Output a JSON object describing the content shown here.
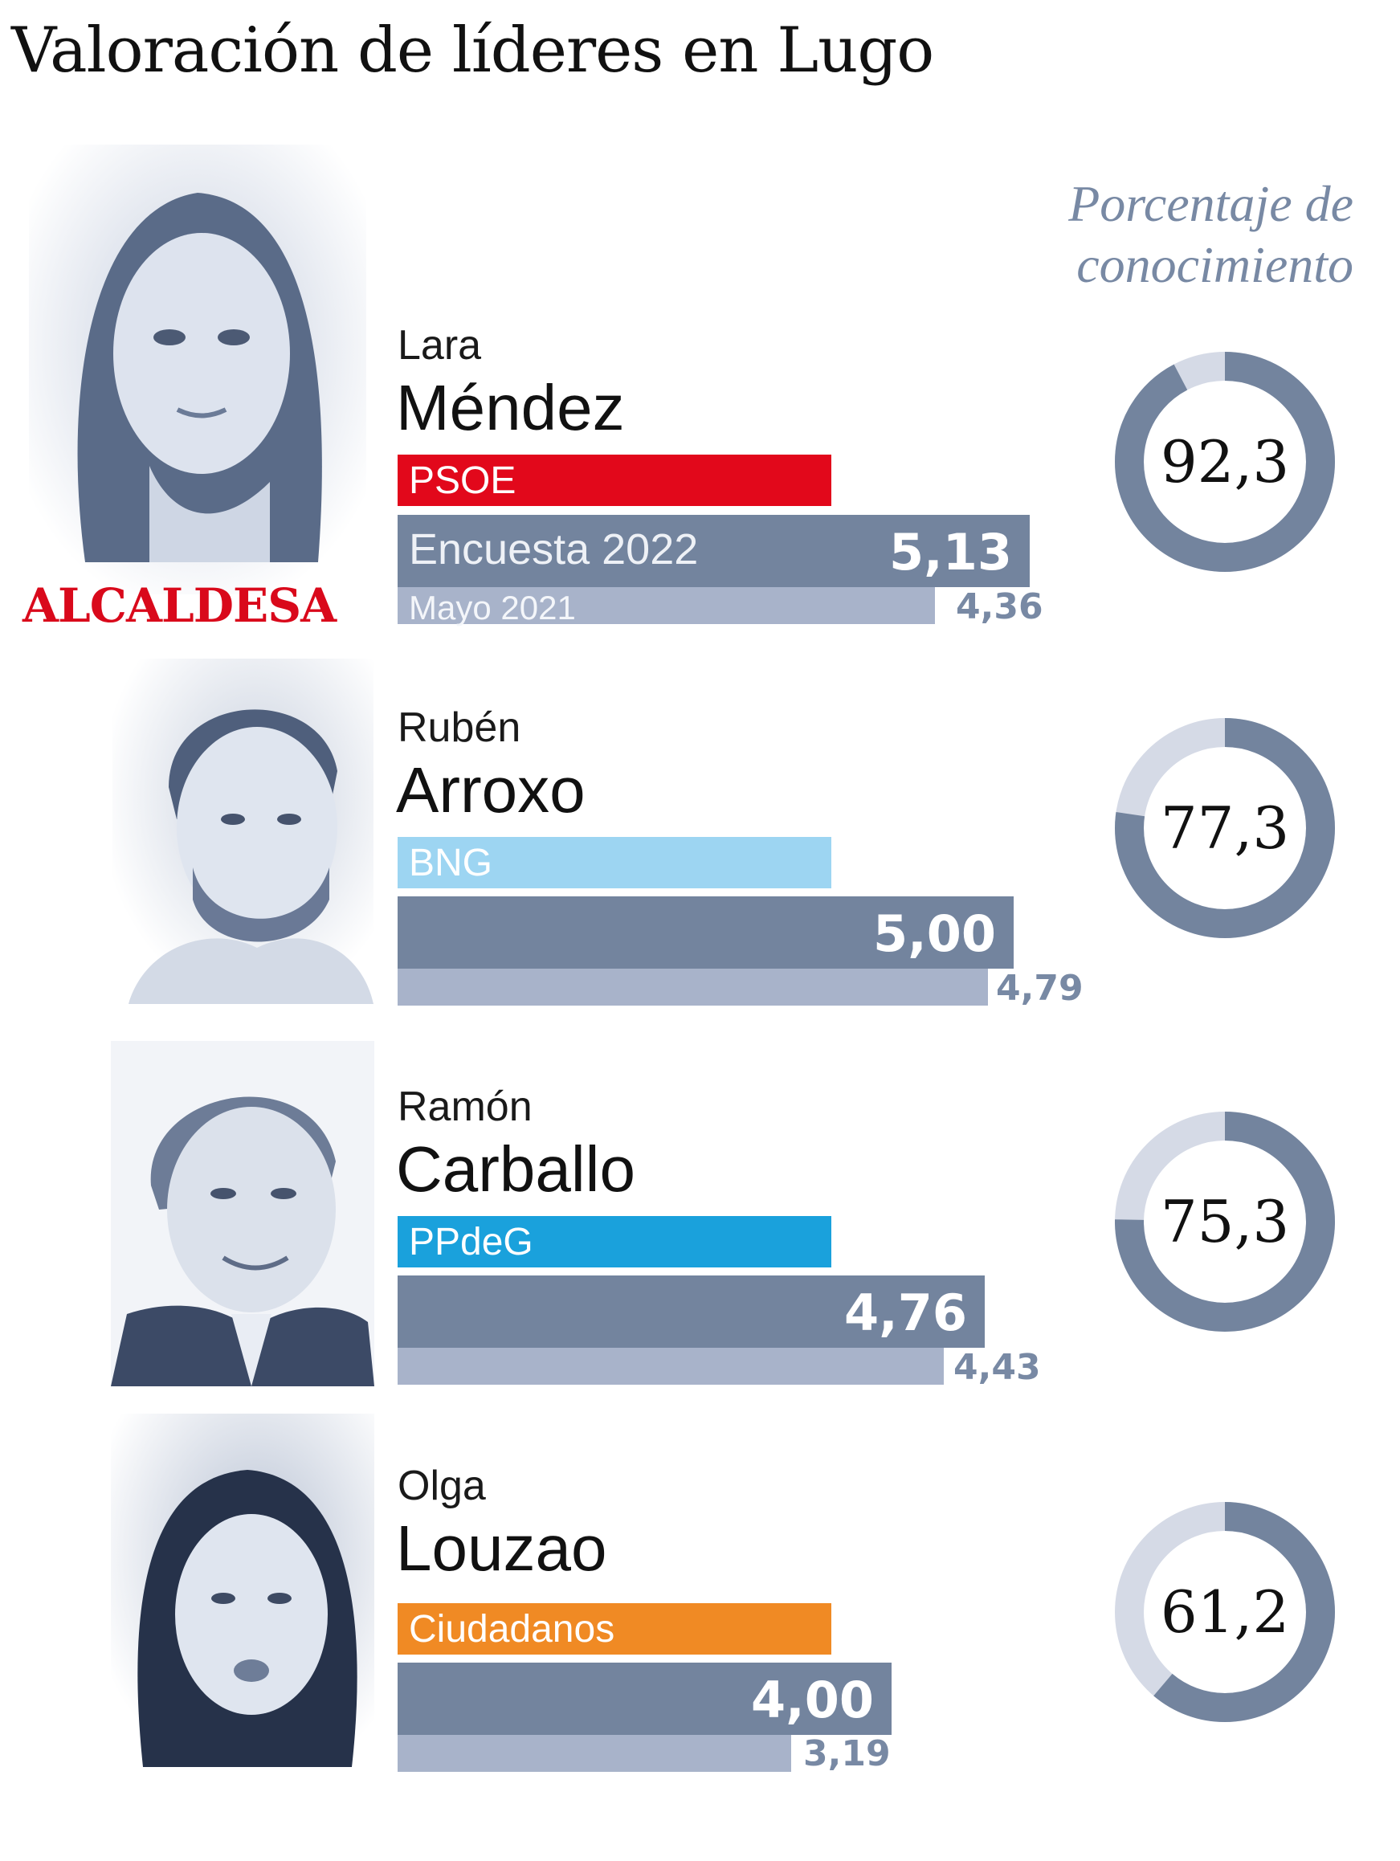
{
  "title": "Valoración de líderes en Lugo",
  "knowledge_heading": [
    "Porcentaje de",
    "conocimiento"
  ],
  "incumbent_label": "ALCALDESA",
  "colors": {
    "survey_2022": "#73849e",
    "may_2021": "#a8b3ca",
    "ring_fill": "#73849e",
    "ring_rest": "#d5dae6",
    "PSOE": "#e2081b",
    "BNG": "#9dd5f2",
    "PPdeG": "#1aa1dc",
    "Ciudadanos": "#f08a24"
  },
  "legend": {
    "survey_2022": "Encuesta 2022",
    "may_2021": "Mayo 2021"
  },
  "leaders": [
    {
      "first_name": "Lara",
      "last_name": "Méndez",
      "party": "PSOE",
      "score_2022": "5,13",
      "score_2021": "4,36",
      "knowledge": "92,3"
    },
    {
      "first_name": "Rubén",
      "last_name": "Arroxo",
      "party": "BNG",
      "score_2022": "5,00",
      "score_2021": "4,79",
      "knowledge": "77,3"
    },
    {
      "first_name": "Ramón",
      "last_name": "Carballo",
      "party": "PPdeG",
      "score_2022": "4,76",
      "score_2021": "4,43",
      "knowledge": "75,3"
    },
    {
      "first_name": "Olga",
      "last_name": "Louzao",
      "party": "Ciudadanos",
      "score_2022": "4,00",
      "score_2021": "3,19",
      "knowledge": "61,2"
    }
  ],
  "chart_data": {
    "type": "bar",
    "title": "Valoración de líderes en Lugo",
    "categories": [
      "Lara Méndez",
      "Rubén Arroxo",
      "Ramón Carballo",
      "Olga Louzao"
    ],
    "series": [
      {
        "name": "Encuesta 2022",
        "values": [
          5.13,
          5.0,
          4.76,
          4.0
        ]
      },
      {
        "name": "Mayo 2021",
        "values": [
          4.36,
          4.79,
          4.43,
          3.19
        ]
      }
    ],
    "knowledge_percent": [
      92.3,
      77.3,
      75.3,
      61.2
    ]
  }
}
